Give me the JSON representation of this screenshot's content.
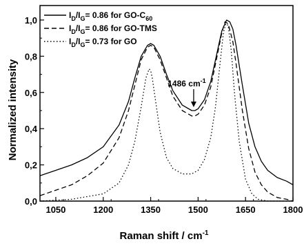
{
  "chart_data": {
    "type": "line",
    "xlabel_main": "Raman shift / cm",
    "xlabel_sup": "-1",
    "ylabel": "Normalized intensity",
    "xlim": [
      1000,
      1800
    ],
    "ylim": [
      0.0,
      1.08
    ],
    "xticks": [
      1050,
      1200,
      1350,
      1500,
      1650,
      1800
    ],
    "yticks": [
      0.0,
      0.2,
      0.4,
      0.6,
      0.8,
      1.0
    ],
    "ytick_labels": [
      "0,0",
      "0,2",
      "0,4",
      "0,6",
      "0,8",
      "1,0"
    ],
    "grid": false,
    "legend_position": "top-left",
    "annotation": {
      "text": "1486 cm",
      "sup": "-1",
      "x": 1486,
      "y": 0.5
    },
    "series": [
      {
        "name": "ID/IG= 0.86 for GO-C60",
        "legend": {
          "p1": "I",
          "s1": "D",
          "p2": "/I",
          "s2": "G",
          "p3": "= 0.86 for GO-C",
          "s3": "60"
        },
        "style": "solid",
        "x": [
          1000,
          1050,
          1100,
          1150,
          1200,
          1250,
          1280,
          1300,
          1320,
          1340,
          1350,
          1360,
          1380,
          1400,
          1420,
          1450,
          1480,
          1490,
          1500,
          1520,
          1540,
          1560,
          1575,
          1590,
          1600,
          1610,
          1620,
          1640,
          1660,
          1680,
          1700,
          1720,
          1750,
          1780,
          1800
        ],
        "y": [
          0.14,
          0.17,
          0.2,
          0.24,
          0.3,
          0.42,
          0.55,
          0.68,
          0.8,
          0.86,
          0.87,
          0.86,
          0.8,
          0.7,
          0.61,
          0.53,
          0.5,
          0.5,
          0.51,
          0.56,
          0.66,
          0.82,
          0.94,
          1.0,
          0.99,
          0.95,
          0.86,
          0.64,
          0.43,
          0.3,
          0.22,
          0.17,
          0.13,
          0.11,
          0.09
        ]
      },
      {
        "name": "ID/IG= 0.86 for GO-TMS",
        "legend": {
          "p1": "I",
          "s1": "D",
          "p2": "/I",
          "s2": "G",
          "p3": "= 0.86 for GO-TMS",
          "s3": ""
        },
        "style": "dashed",
        "x": [
          1000,
          1050,
          1100,
          1150,
          1200,
          1250,
          1280,
          1300,
          1320,
          1340,
          1350,
          1360,
          1380,
          1400,
          1420,
          1450,
          1480,
          1490,
          1500,
          1520,
          1540,
          1560,
          1575,
          1585,
          1595,
          1610,
          1620,
          1640,
          1660,
          1680,
          1700,
          1720,
          1750,
          1780,
          1800
        ],
        "y": [
          0.03,
          0.06,
          0.09,
          0.14,
          0.21,
          0.35,
          0.5,
          0.64,
          0.78,
          0.85,
          0.86,
          0.85,
          0.78,
          0.68,
          0.58,
          0.5,
          0.47,
          0.47,
          0.48,
          0.53,
          0.63,
          0.8,
          0.93,
          0.99,
          0.98,
          0.88,
          0.76,
          0.5,
          0.29,
          0.16,
          0.09,
          0.05,
          0.02,
          0.01,
          0.0
        ]
      },
      {
        "name": "ID/IG= 0.73 for GO",
        "legend": {
          "p1": "I",
          "s1": "D",
          "p2": "/I",
          "s2": "G",
          "p3": "= 0.73 for GO",
          "s3": ""
        },
        "style": "dotted",
        "x": [
          1000,
          1100,
          1200,
          1250,
          1280,
          1300,
          1320,
          1335,
          1345,
          1350,
          1355,
          1365,
          1380,
          1400,
          1420,
          1450,
          1480,
          1500,
          1520,
          1540,
          1555,
          1570,
          1580,
          1588,
          1595,
          1605,
          1615,
          1630,
          1650,
          1670,
          1690,
          1720,
          1750,
          1800
        ],
        "y": [
          0.0,
          0.01,
          0.04,
          0.1,
          0.2,
          0.33,
          0.52,
          0.68,
          0.73,
          0.72,
          0.68,
          0.56,
          0.38,
          0.24,
          0.18,
          0.15,
          0.15,
          0.17,
          0.23,
          0.35,
          0.52,
          0.77,
          0.93,
          0.98,
          0.97,
          0.83,
          0.6,
          0.33,
          0.12,
          0.04,
          0.01,
          0.0,
          0.0,
          0.0
        ]
      }
    ]
  }
}
